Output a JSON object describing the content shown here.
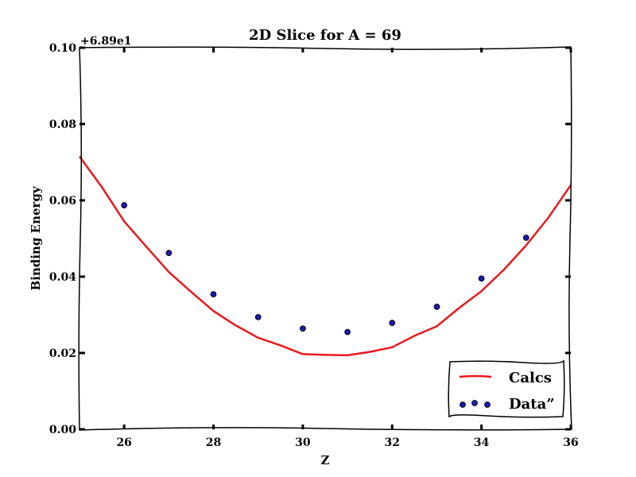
{
  "chart_data": {
    "type": "line",
    "title": "2D Slice for A = 69",
    "xlabel": "Z",
    "ylabel": "Binding Energy",
    "y_offset_text": "+6.89e1",
    "xlim": [
      25,
      36
    ],
    "ylim": [
      0.0,
      0.1
    ],
    "x_ticks": [
      26,
      28,
      30,
      32,
      34,
      36
    ],
    "x_tick_labels": [
      "26",
      "28",
      "30",
      "32",
      "34",
      "36"
    ],
    "y_ticks": [
      0.0,
      0.02,
      0.04,
      0.06,
      0.08,
      0.1
    ],
    "y_tick_labels": [
      "0.00",
      "0.02",
      "0.04",
      "0.06",
      "0.08",
      "0.10"
    ],
    "grid": false,
    "legend_position": "lower-right",
    "series": [
      {
        "name": "Calcs",
        "kind": "line",
        "color": "#e8191e",
        "x": [
          25,
          25.5,
          26,
          26.5,
          27,
          27.5,
          28,
          28.5,
          29,
          29.5,
          30,
          30.5,
          31,
          31.5,
          32,
          32.5,
          33,
          33.5,
          34,
          34.5,
          35,
          35.5,
          36
        ],
        "y": [
          0.0715,
          0.0635,
          0.0545,
          0.0478,
          0.0412,
          0.036,
          0.031,
          0.0272,
          0.024,
          0.022,
          0.0197,
          0.0195,
          0.0194,
          0.0203,
          0.0215,
          0.0245,
          0.027,
          0.0318,
          0.0362,
          0.0418,
          0.0482,
          0.0555,
          0.064
        ]
      },
      {
        "name": "Data”",
        "kind": "scatter",
        "color": "#1a1aa8",
        "x": [
          26,
          27,
          28,
          29,
          30,
          31,
          32,
          33,
          34,
          35
        ],
        "y": [
          0.0587,
          0.0462,
          0.0354,
          0.0294,
          0.0264,
          0.0255,
          0.0279,
          0.0321,
          0.0395,
          0.0502
        ]
      }
    ]
  }
}
